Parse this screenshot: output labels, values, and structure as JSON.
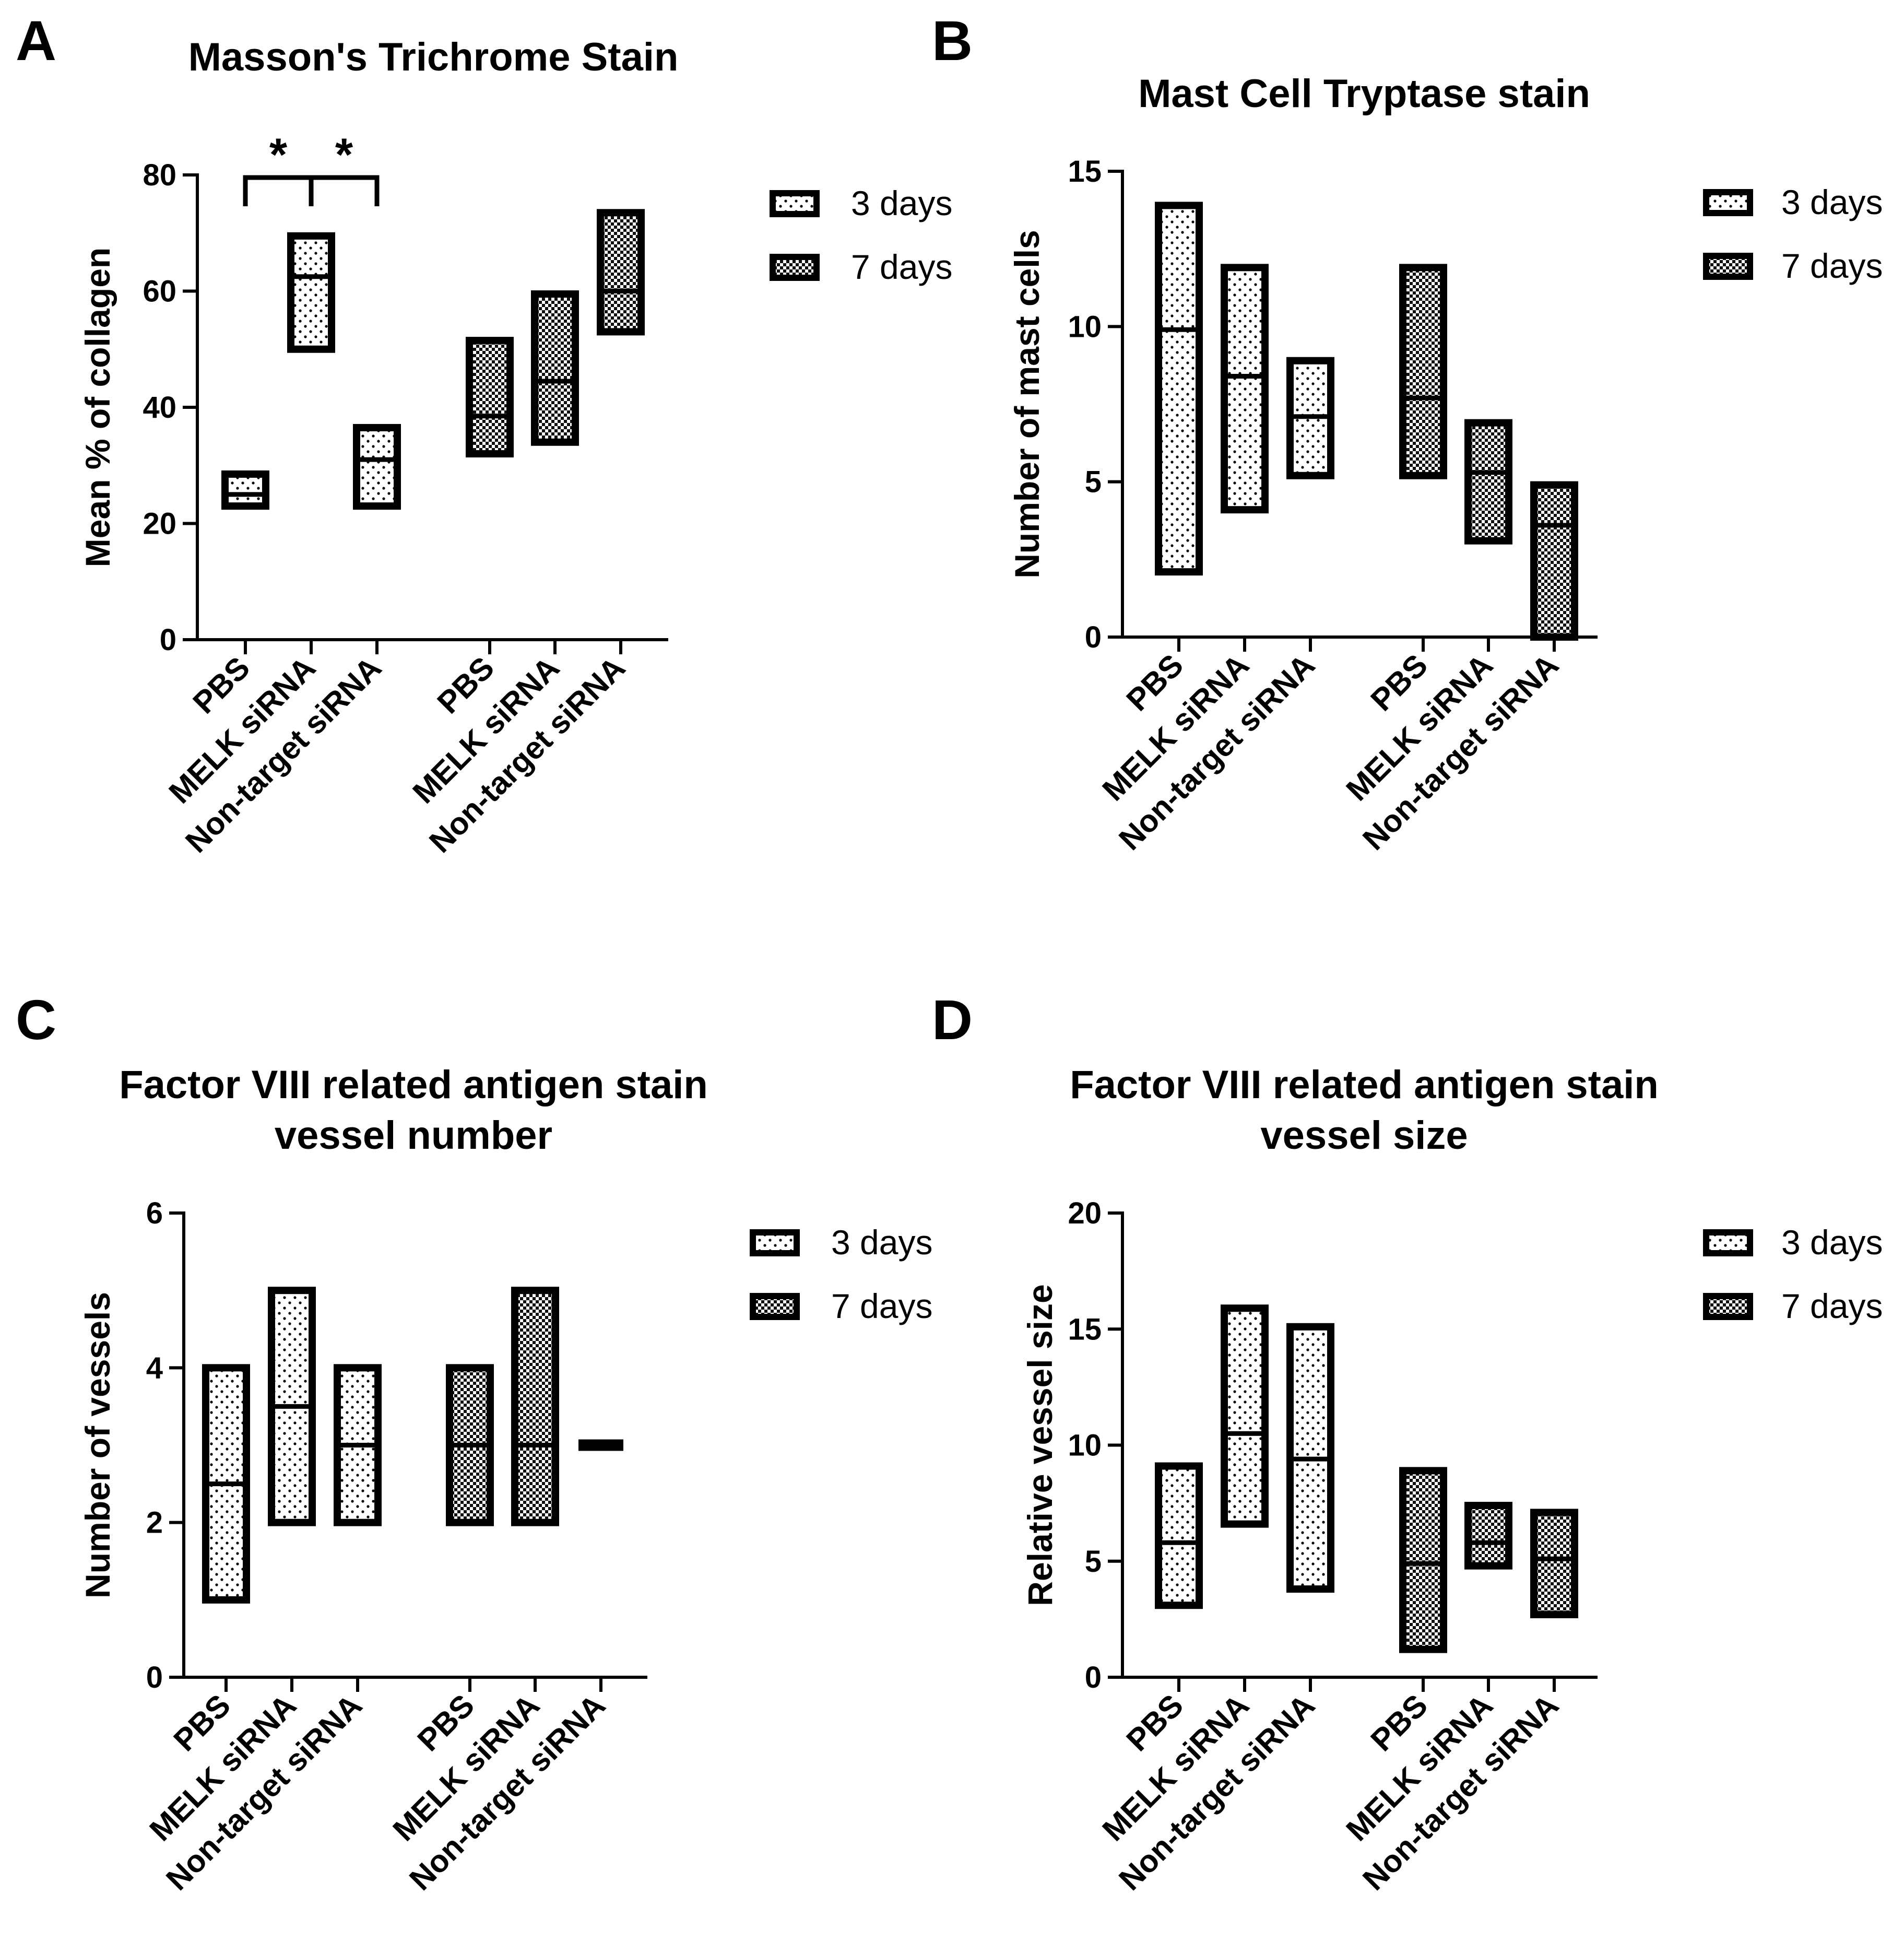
{
  "legend": {
    "series": [
      "3 days",
      "7 days"
    ]
  },
  "categories": [
    "PBS",
    "MELK siRNA",
    "Non-target siRNA",
    "PBS",
    "MELK siRNA",
    "Non-target siRNA"
  ],
  "chart_data": [
    {
      "id": "A",
      "type": "floating-bar",
      "letter": "A",
      "title": [
        "Masson's Trichrome Stain"
      ],
      "ylabel": "Mean % of collagen",
      "ylim": [
        0,
        80
      ],
      "yticks": [
        0,
        20,
        40,
        60,
        80
      ],
      "legend_position": "top-right",
      "significance": [
        {
          "from": 0,
          "to": 1,
          "label": "*"
        },
        {
          "from": 1,
          "to": 2,
          "label": "*"
        }
      ],
      "groups": [
        {
          "series": "3 days",
          "pattern": "dots",
          "bars": [
            {
              "category": "PBS",
              "min": 23,
              "max": 28.5,
              "mid": 25
            },
            {
              "category": "MELK siRNA",
              "min": 50,
              "max": 69.5,
              "mid": 62.5
            },
            {
              "category": "Non-target siRNA",
              "min": 23,
              "max": 36.5,
              "mid": 31
            }
          ]
        },
        {
          "series": "7 days",
          "pattern": "checker",
          "bars": [
            {
              "category": "PBS",
              "min": 32,
              "max": 51.5,
              "mid": 38.5
            },
            {
              "category": "MELK siRNA",
              "min": 34,
              "max": 59.5,
              "mid": 44.5
            },
            {
              "category": "Non-target siRNA",
              "min": 53,
              "max": 73.5,
              "mid": 60
            }
          ]
        }
      ]
    },
    {
      "id": "B",
      "type": "floating-bar",
      "letter": "B",
      "title": [
        "Mast Cell Tryptase stain"
      ],
      "ylabel": "Number of mast cells",
      "ylim": [
        0,
        15
      ],
      "yticks": [
        0,
        5,
        10,
        15
      ],
      "legend_position": "top-right",
      "significance": [],
      "groups": [
        {
          "series": "3 days",
          "pattern": "dots",
          "bars": [
            {
              "category": "PBS",
              "min": 2.1,
              "max": 13.9,
              "mid": 9.9
            },
            {
              "category": "MELK siRNA",
              "min": 4.1,
              "max": 11.9,
              "mid": 8.4
            },
            {
              "category": "Non-target siRNA",
              "min": 5.2,
              "max": 8.9,
              "mid": 7.1
            }
          ]
        },
        {
          "series": "7 days",
          "pattern": "checker",
          "bars": [
            {
              "category": "PBS",
              "min": 5.2,
              "max": 11.9,
              "mid": 7.7
            },
            {
              "category": "MELK siRNA",
              "min": 3.1,
              "max": 6.9,
              "mid": 5.3
            },
            {
              "category": "Non-target siRNA",
              "min": 0,
              "max": 4.9,
              "mid": 3.6
            }
          ]
        }
      ]
    },
    {
      "id": "C",
      "type": "floating-bar",
      "letter": "C",
      "title": [
        "Factor VIII related antigen stain",
        "vessel number"
      ],
      "ylabel": "Number of vessels",
      "ylim": [
        0,
        6
      ],
      "yticks": [
        0,
        2,
        4,
        6
      ],
      "legend_position": "top-right",
      "significance": [],
      "groups": [
        {
          "series": "3 days",
          "pattern": "dots",
          "bars": [
            {
              "category": "PBS",
              "min": 1,
              "max": 4,
              "mid": 2.5
            },
            {
              "category": "MELK siRNA",
              "min": 2,
              "max": 5,
              "mid": 3.5
            },
            {
              "category": "Non-target siRNA",
              "min": 2,
              "max": 4,
              "mid": 3
            }
          ]
        },
        {
          "series": "7 days",
          "pattern": "checker",
          "bars": [
            {
              "category": "PBS",
              "min": 2,
              "max": 4,
              "mid": 3
            },
            {
              "category": "MELK siRNA",
              "min": 2,
              "max": 5,
              "mid": 3
            },
            {
              "category": "Non-target siRNA",
              "min": 3,
              "max": 3,
              "mid": 3
            }
          ]
        }
      ]
    },
    {
      "id": "D",
      "type": "floating-bar",
      "letter": "D",
      "title": [
        "Factor VIII related antigen stain",
        "vessel size"
      ],
      "ylabel": "Relative vessel size",
      "ylim": [
        0,
        20
      ],
      "yticks": [
        0,
        5,
        10,
        15,
        20
      ],
      "legend_position": "top-right",
      "significance": [],
      "groups": [
        {
          "series": "3 days",
          "pattern": "dots",
          "bars": [
            {
              "category": "PBS",
              "min": 3.1,
              "max": 9.1,
              "mid": 5.8
            },
            {
              "category": "MELK siRNA",
              "min": 6.6,
              "max": 15.9,
              "mid": 10.5
            },
            {
              "category": "Non-target siRNA",
              "min": 3.8,
              "max": 15.1,
              "mid": 9.4
            }
          ]
        },
        {
          "series": "7 days",
          "pattern": "checker",
          "bars": [
            {
              "category": "PBS",
              "min": 1.2,
              "max": 8.9,
              "mid": 4.9
            },
            {
              "category": "MELK siRNA",
              "min": 4.8,
              "max": 7.4,
              "mid": 5.8
            },
            {
              "category": "Non-target siRNA",
              "min": 2.7,
              "max": 7.1,
              "mid": 5.1
            }
          ]
        }
      ]
    }
  ]
}
